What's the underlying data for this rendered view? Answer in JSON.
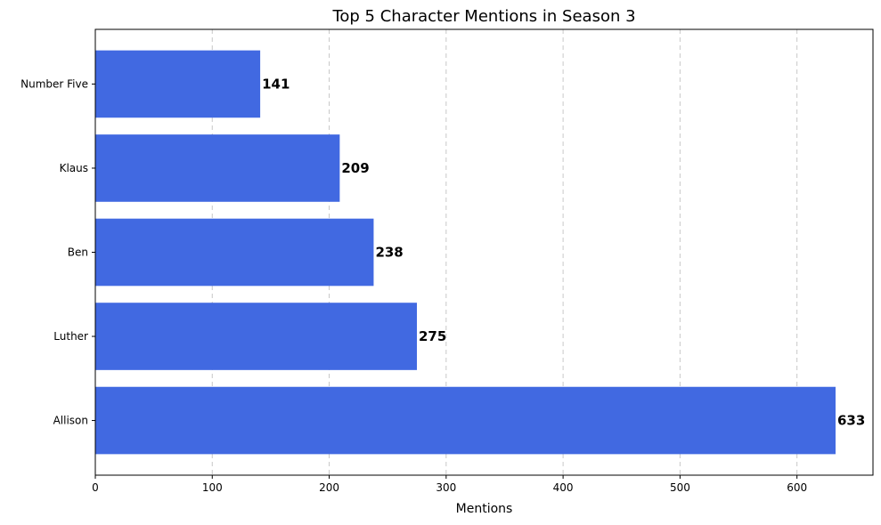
{
  "chart_data": {
    "type": "bar",
    "orientation": "horizontal",
    "title": "Top 5 Character Mentions in Season 3",
    "xlabel": "Mentions",
    "ylabel": "",
    "categories": [
      "Allison",
      "Luther",
      "Ben",
      "Klaus",
      "Number Five"
    ],
    "values": [
      633,
      275,
      238,
      209,
      141
    ],
    "xlim": [
      0,
      665
    ],
    "xticks": [
      0,
      100,
      200,
      300,
      400,
      500,
      600
    ],
    "grid": "x dashed",
    "bar_color": "#4169e1"
  }
}
